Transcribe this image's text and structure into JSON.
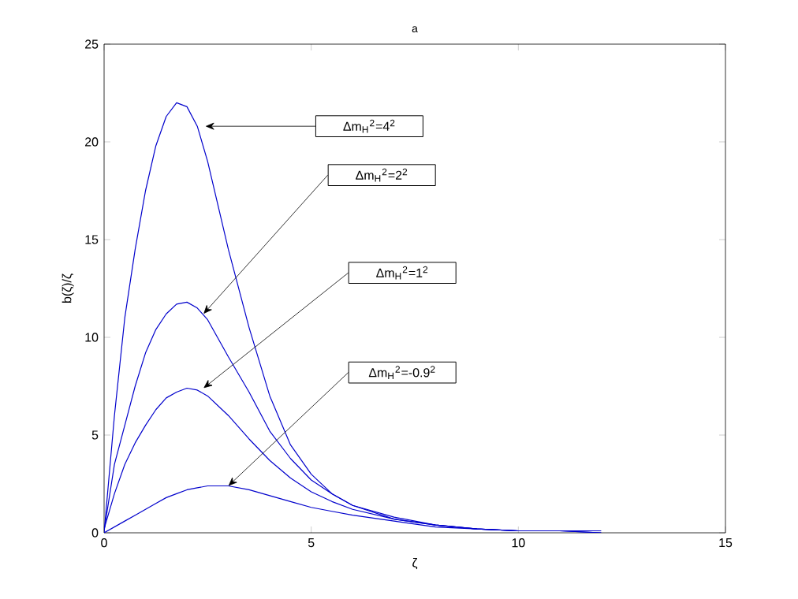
{
  "chart_data": {
    "type": "line",
    "title": "a",
    "xlabel": "ζ",
    "ylabel": "b(ζ)/ζ",
    "xlim": [
      0,
      15
    ],
    "ylim": [
      0,
      25
    ],
    "xticks": [
      0,
      5,
      10,
      15
    ],
    "yticks": [
      0,
      5,
      10,
      15,
      20,
      25
    ],
    "grid": false,
    "marker": "none",
    "line_style": "solid",
    "x": [
      0,
      0.25,
      0.5,
      0.75,
      1.0,
      1.25,
      1.5,
      1.75,
      2.0,
      2.25,
      2.5,
      3.0,
      3.5,
      4.0,
      4.5,
      5.0,
      5.5,
      6.0,
      7.0,
      8.0,
      9.0,
      10.0,
      11.0,
      12.0
    ],
    "series": [
      {
        "color": "#0000cc",
        "values": [
          0,
          6,
          11,
          14.5,
          17.5,
          19.8,
          21.3,
          22,
          21.8,
          20.8,
          19.0,
          14.5,
          10.5,
          7.0,
          4.5,
          3.0,
          2.0,
          1.4,
          0.7,
          0.4,
          0.2,
          0.1,
          0.1,
          0
        ]
      },
      {
        "color": "#0000cc",
        "values": [
          0.1,
          3.5,
          5.5,
          7.5,
          9.2,
          10.4,
          11.2,
          11.7,
          11.8,
          11.5,
          10.9,
          9.0,
          7.2,
          5.2,
          3.8,
          2.7,
          2.0,
          1.4,
          0.8,
          0.4,
          0.2,
          0.1,
          null,
          null
        ]
      },
      {
        "color": "#0000cc",
        "values": [
          0.2,
          2,
          3.5,
          4.6,
          5.5,
          6.3,
          6.9,
          7.2,
          7.4,
          7.3,
          7.0,
          6.0,
          4.8,
          3.7,
          2.8,
          2.1,
          1.6,
          1.2,
          0.7,
          0.4,
          0.2,
          0.1,
          0.1,
          0
        ]
      },
      {
        "color": "#0000cc",
        "values": [
          0,
          0.3,
          0.6,
          0.9,
          1.2,
          1.5,
          1.8,
          2.0,
          2.2,
          2.3,
          2.4,
          2.4,
          2.2,
          1.9,
          1.6,
          1.3,
          1.1,
          0.9,
          0.6,
          0.3,
          0.2,
          0.1,
          0.1,
          0.1
        ]
      }
    ],
    "annotations": [
      "Δm$_{H}$$^{2}$=4$^{2}$",
      "Δm$_{H}$$^{2}$=2$^{2}$",
      "Δm$_{H}$$^{2}$=1$^{2}$",
      "Δm$_{H}$$^{2}$=-0.9$^{2}$"
    ]
  }
}
